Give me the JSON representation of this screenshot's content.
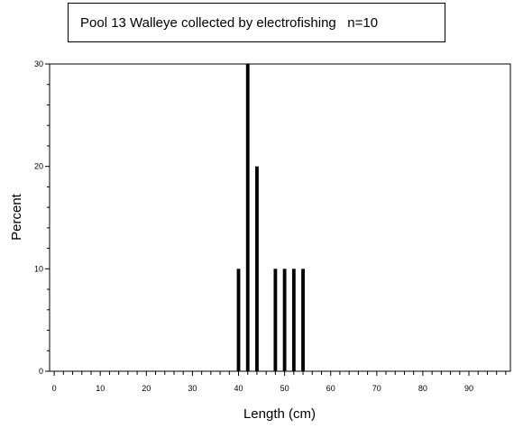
{
  "chart_data": {
    "type": "bar",
    "title": "Pool 13 Walleye collected by electrofishing   n=10",
    "xlabel": "Length (cm)",
    "ylabel": "Percent",
    "xlim": [
      -1,
      99
    ],
    "ylim": [
      0,
      30
    ],
    "x_ticks": [
      0,
      10,
      20,
      30,
      40,
      50,
      60,
      70,
      80,
      90
    ],
    "y_ticks": [
      0,
      10,
      20,
      30
    ],
    "x_minor_step": 2,
    "y_minor_step": 2,
    "bar_width_units": 0.75,
    "grid": false,
    "bar_color": "#000000",
    "bars": [
      {
        "x": 40,
        "value": 10
      },
      {
        "x": 42,
        "value": 30
      },
      {
        "x": 44,
        "value": 20
      },
      {
        "x": 48,
        "value": 10
      },
      {
        "x": 50,
        "value": 10
      },
      {
        "x": 52,
        "value": 10
      },
      {
        "x": 54,
        "value": 10
      }
    ]
  }
}
